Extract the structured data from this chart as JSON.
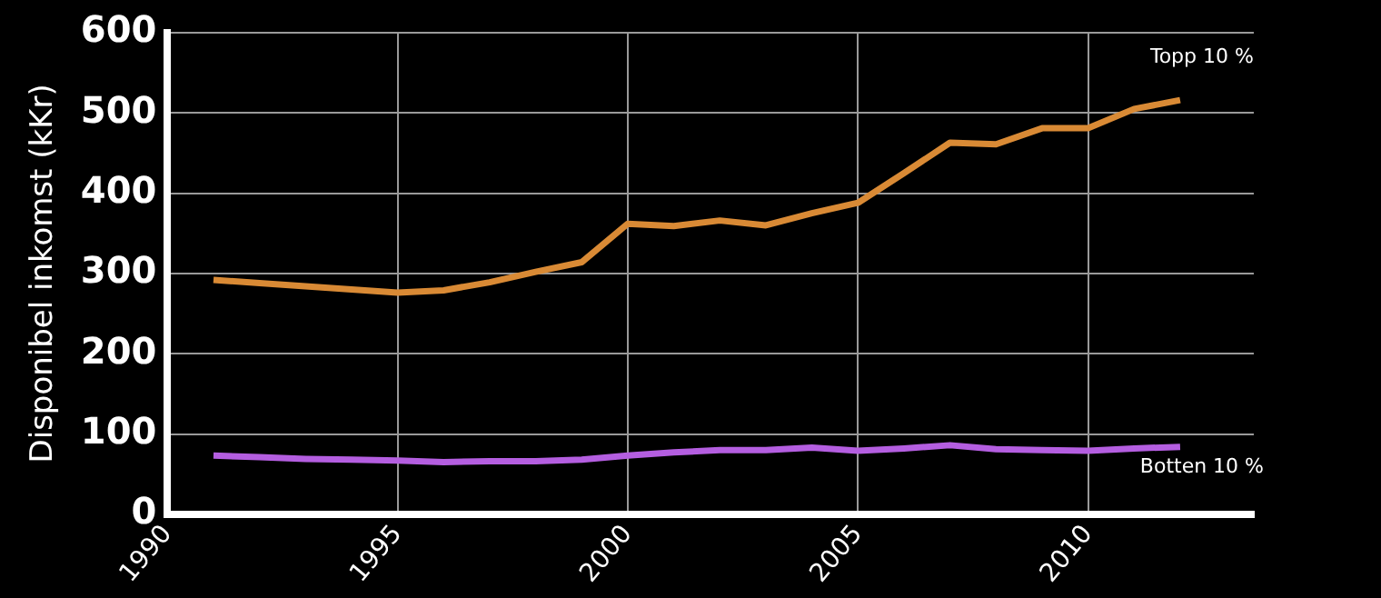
{
  "chart_data": {
    "type": "line",
    "ylabel": "Disponibel inkomst (kKr)",
    "x": [
      1991,
      1992,
      1993,
      1994,
      1995,
      1996,
      1997,
      1998,
      1999,
      2000,
      2001,
      2002,
      2003,
      2004,
      2005,
      2006,
      2007,
      2008,
      2009,
      2010,
      2011,
      2012
    ],
    "series": [
      {
        "name": "Topp 10 %",
        "color": "#d98a35",
        "values": [
          292,
          288,
          284,
          280,
          276,
          279,
          289,
          302,
          314,
          362,
          359,
          366,
          360,
          375,
          388,
          425,
          463,
          461,
          481,
          481,
          505,
          516
        ]
      },
      {
        "name": "Botten 10 %",
        "color": "#b45ee0",
        "values": [
          73,
          71,
          69,
          68,
          67,
          65,
          66,
          66,
          68,
          73,
          77,
          80,
          80,
          83,
          79,
          82,
          86,
          81,
          80,
          79,
          82,
          84
        ]
      }
    ],
    "xlim": [
      1990,
      2013.6
    ],
    "xticks": [
      1990,
      1995,
      2000,
      2005,
      2010
    ],
    "ylim": [
      0,
      600
    ],
    "yticks": [
      0,
      100,
      200,
      300,
      400,
      500,
      600
    ],
    "grid": true,
    "legend": false,
    "marker": "none",
    "line_style": "solid"
  }
}
